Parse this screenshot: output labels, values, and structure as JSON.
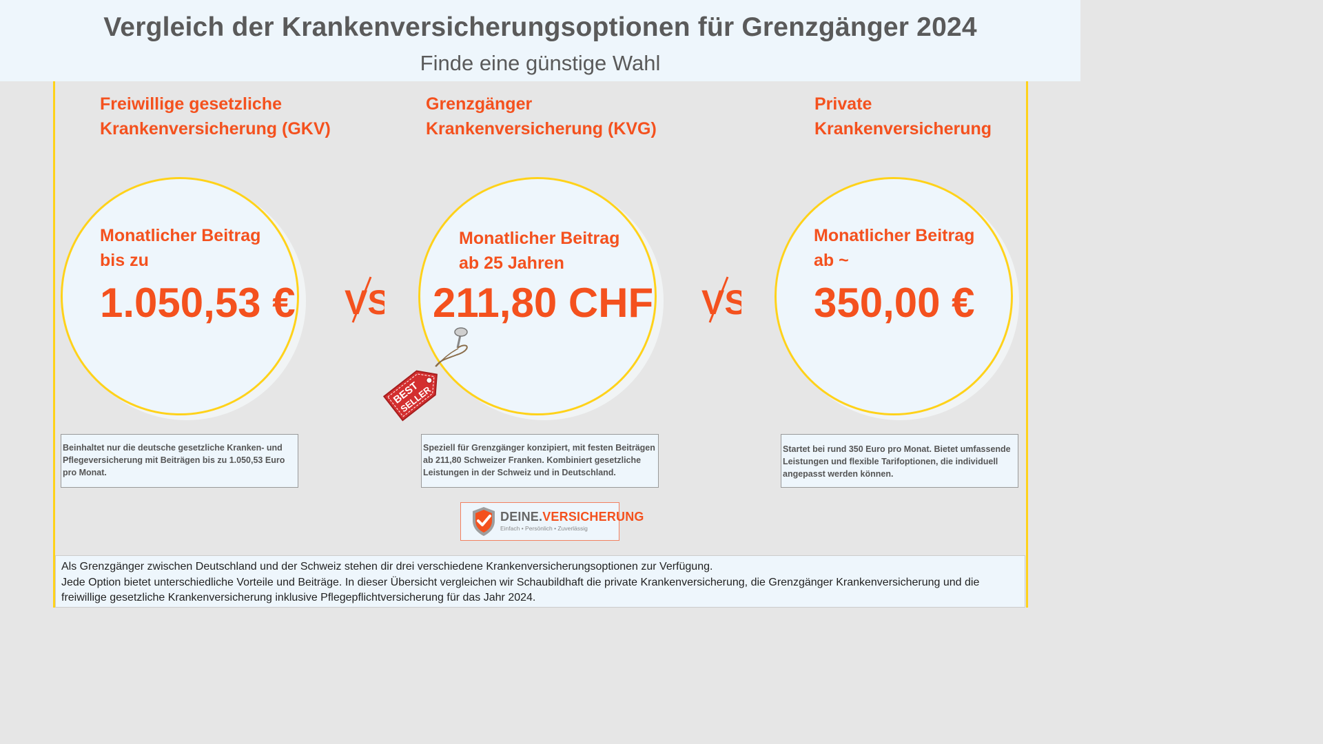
{
  "header": {
    "title": "Vergleich der Krankenversicherungsoptionen für Grenzgänger 2024",
    "subtitle": "Finde eine günstige Wahl"
  },
  "columns": [
    {
      "title_line1": "Freiwillige gesetzliche",
      "title_line2": "Krankenversicherung (GKV)",
      "label_line1": "Monatlicher Beitrag",
      "label_line2": "bis zu",
      "price": "1.050,53 €",
      "description": "Beinhaltet nur die deutsche gesetzliche Kranken- und Pflegeversicherung mit Beiträgen bis zu 1.050,53 Euro pro Monat."
    },
    {
      "title_line1": "Grenzgänger",
      "title_line2": "Krankenversicherung (KVG)",
      "label_line1": "Monatlicher Beitrag",
      "label_line2": "ab 25 Jahren",
      "price": "211,80 CHF",
      "description": "Speziell für Grenzgänger konzipiert, mit festen Beiträgen ab 211,80 Schweizer Franken. Kombiniert gesetzliche Leistungen in der Schweiz und in Deutschland."
    },
    {
      "title_line1": "Private",
      "title_line2": "Krankenversicherung",
      "label_line1": "Monatlicher Beitrag",
      "label_line2": "ab ~",
      "price": "350,00 €",
      "description": "Startet bei rund 350 Euro pro Monat. Bietet umfassende Leistungen und flexible Tarifoptionen, die individuell angepasst werden können."
    }
  ],
  "vs_label": "VS",
  "badge": {
    "line1": "BEST",
    "line2": "SELLER"
  },
  "logo": {
    "name_part1": "DEINE.",
    "name_part2": "VERSICHERUNG",
    "tagline": "Einfach • Persönlich • Zuverlässig"
  },
  "footer": {
    "line1": "Als Grenzgänger zwischen Deutschland und der Schweiz stehen dir drei verschiedene Krankenversicherungsoptionen zur Verfügung.",
    "line2": "Jede Option bietet unterschiedliche Vorteile und Beiträge. In dieser Übersicht vergleichen wir Schaubildhaft die private Krankenversicherung, die Grenzgänger Krankenversicherung und die",
    "line3": "freiwillige gesetzliche Krankenversicherung inklusive Pflegepflichtversicherung für das Jahr 2024."
  },
  "colors": {
    "accent": "#f4511e",
    "circle_border": "#ffd21a",
    "panel_bg": "#eef6fc",
    "page_bg": "#e6e6e6",
    "badge_red": "#d32f2f"
  }
}
